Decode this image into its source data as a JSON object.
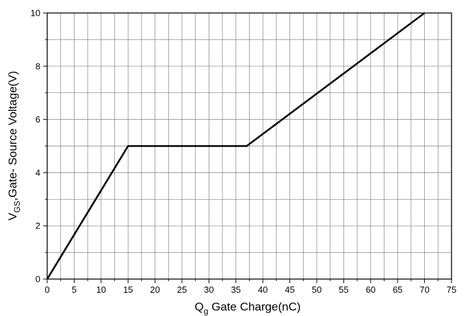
{
  "chart_data": {
    "type": "line",
    "xlabel": {
      "main": "Q",
      "sub": "g",
      "rest": " Gate Charge(nC)"
    },
    "ylabel": {
      "main": "V",
      "sub": "GS",
      "rest": ",Gate- Source Voltage(V)"
    },
    "xlim": [
      0,
      75
    ],
    "ylim": [
      0,
      10
    ],
    "x_ticks": [
      0,
      5,
      10,
      15,
      20,
      25,
      30,
      35,
      40,
      45,
      50,
      55,
      60,
      65,
      70,
      75
    ],
    "y_ticks": [
      0,
      2,
      4,
      6,
      8,
      10
    ],
    "x_minor_step": 2.5,
    "y_minor_step": 1,
    "grid": true,
    "series": [
      {
        "x": [
          0,
          15,
          37,
          70
        ],
        "y": [
          0,
          5,
          5,
          10
        ]
      }
    ],
    "colors": {
      "line": "#000000",
      "grid": "#7f7f7f",
      "axes": "#000000"
    }
  }
}
